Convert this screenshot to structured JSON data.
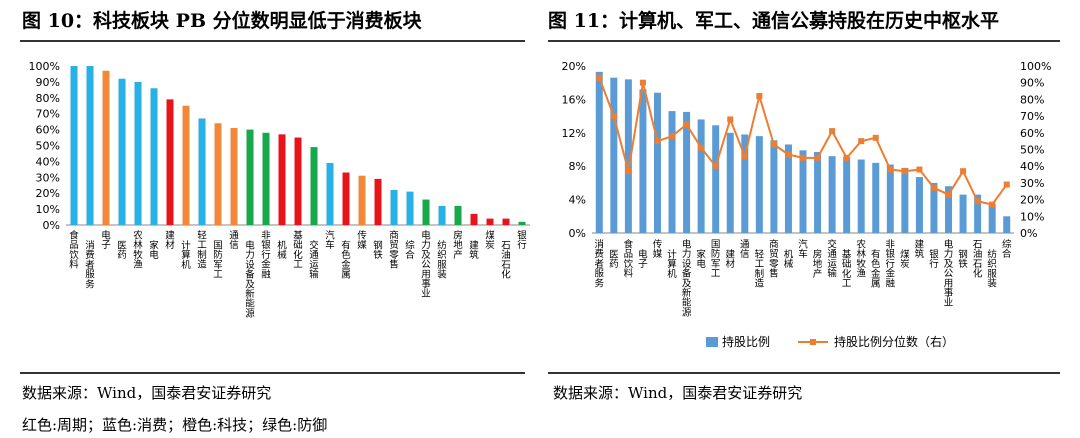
{
  "left_panel": {
    "title": "图 10：科技板块 PB 分位数明显低于消费板块",
    "source": "数据来源：Wind，国泰君安证券研究",
    "color_note": "红色:周期；蓝色:消费；橙色:科技；绿色:防御"
  },
  "right_panel": {
    "title": "图 11：计算机、军工、通信公募持股在历史中枢水平",
    "source": "数据来源：Wind，国泰君安证券研究"
  },
  "colors": {
    "cycle": "#e8141b",
    "consumer": "#2aafe6",
    "tech": "#f0883a",
    "defense": "#16a84a",
    "holding_bar": "#5b9bd5",
    "holding_line": "#ed7d31"
  },
  "chart_data": [
    {
      "type": "bar",
      "categories": [
        "食品饮料",
        "消费者服务",
        "电子",
        "医药",
        "农林牧渔",
        "家电",
        "建材",
        "计算机",
        "轻工制造",
        "国防军工",
        "通信",
        "电力设备及新能源",
        "非银行金融",
        "机械",
        "基础化工",
        "交通运输",
        "汽车",
        "有色金属",
        "传媒",
        "钢铁",
        "商贸零售",
        "综合",
        "电力及公用事业",
        "纺织服装",
        "房地产",
        "建筑",
        "煤炭",
        "石油石化",
        "银行"
      ],
      "values": [
        100,
        100,
        97,
        92,
        90,
        86,
        79,
        75,
        67,
        64,
        61,
        60,
        58,
        57,
        55,
        49,
        39,
        33,
        31,
        29,
        22,
        21,
        16,
        12,
        12,
        7,
        4,
        4,
        2
      ],
      "groups": [
        "consumer",
        "consumer",
        "tech",
        "consumer",
        "consumer",
        "consumer",
        "cycle",
        "tech",
        "consumer",
        "tech",
        "tech",
        "defense",
        "defense",
        "cycle",
        "cycle",
        "defense",
        "consumer",
        "cycle",
        "tech",
        "cycle",
        "consumer",
        "consumer",
        "defense",
        "consumer",
        "defense",
        "cycle",
        "cycle",
        "cycle",
        "defense"
      ],
      "y_ticks": [
        "0%",
        "10%",
        "20%",
        "30%",
        "40%",
        "50%",
        "60%",
        "70%",
        "80%",
        "90%",
        "100%"
      ],
      "ylim": [
        0,
        100
      ],
      "grid": false
    },
    {
      "type": "bar",
      "categories": [
        "消费者服务",
        "医药",
        "食品饮料",
        "电子",
        "传媒",
        "计算机",
        "电力设备及新能源",
        "家电",
        "国防军工",
        "建材",
        "通信",
        "轻工制造",
        "商贸零售",
        "机械",
        "汽车",
        "房地产",
        "交通运输",
        "基础化工",
        "农林牧渔",
        "有色金属",
        "非银行金融",
        "煤炭",
        "建筑",
        "银行",
        "电力及公用事业",
        "钢铁",
        "石油石化",
        "纺织服装",
        "综合"
      ],
      "series": [
        {
          "name": "持股比例",
          "type": "bar",
          "values": [
            19.3,
            18.6,
            18.4,
            17.2,
            16.8,
            14.6,
            14.5,
            13.6,
            12.9,
            12.0,
            11.8,
            11.6,
            11.1,
            10.6,
            9.9,
            9.7,
            9.2,
            9.1,
            8.8,
            8.4,
            8.2,
            7.8,
            6.7,
            6.0,
            5.6,
            4.6,
            4.6,
            3.5,
            2.0
          ]
        },
        {
          "name": "持股比例分位数（右）",
          "type": "line",
          "axis": "right",
          "values": [
            93,
            70,
            37,
            90,
            55,
            58,
            65,
            51,
            40,
            68,
            46,
            82,
            53,
            47,
            45,
            45,
            61,
            45,
            55,
            57,
            38,
            37,
            38,
            27,
            23,
            37,
            19,
            17,
            29
          ]
        }
      ],
      "y_ticks_left": [
        "0%",
        "4%",
        "8%",
        "12%",
        "16%",
        "20%"
      ],
      "y_ticks_right": [
        "0%",
        "10%",
        "20%",
        "30%",
        "40%",
        "50%",
        "60%",
        "70%",
        "80%",
        "90%",
        "100%"
      ],
      "ylim_left": [
        0,
        20
      ],
      "ylim_right": [
        0,
        100
      ],
      "legend_position": "bottom",
      "grid": false
    }
  ]
}
